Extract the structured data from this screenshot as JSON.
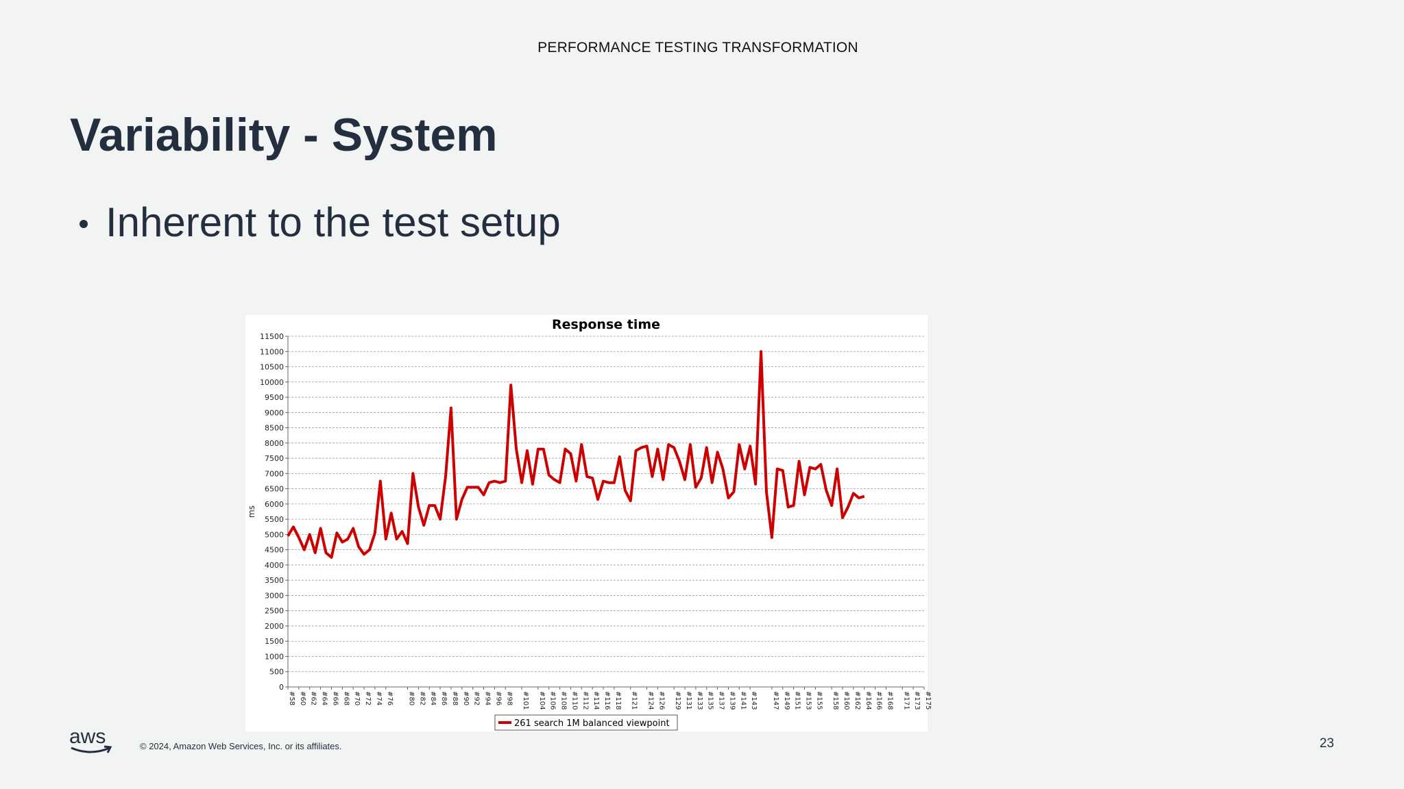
{
  "header": {
    "text": "PERFORMANCE TESTING TRANSFORMATION"
  },
  "slide": {
    "title": "Variability - System",
    "bullets": [
      "Inherent to the test setup"
    ]
  },
  "footer": {
    "logo": "aws",
    "copyright": "© 2024, Amazon Web Services, Inc. or its affiliates.",
    "page": "23"
  },
  "chart_data": {
    "type": "line",
    "title": "Response time",
    "xlabel": "",
    "ylabel": "ms",
    "ylim": [
      0,
      11500
    ],
    "ytick_step": 500,
    "grid": true,
    "legend_position": "bottom",
    "line_color": "#cc0000",
    "x_start": 58,
    "x_end": 175,
    "x_ticks": [
      "#58",
      "#60",
      "#62",
      "#64",
      "#66",
      "#68",
      "#70",
      "#72",
      "#74",
      "#76",
      "#80",
      "#82",
      "#84",
      "#86",
      "#88",
      "#90",
      "#92",
      "#94",
      "#96",
      "#98",
      "#101",
      "#104",
      "#106",
      "#108",
      "#110",
      "#112",
      "#114",
      "#116",
      "#118",
      "#121",
      "#124",
      "#126",
      "#129",
      "#131",
      "#133",
      "#135",
      "#137",
      "#139",
      "#141",
      "#143",
      "#147",
      "#149",
      "#151",
      "#153",
      "#155",
      "#158",
      "#160",
      "#162",
      "#164",
      "#166",
      "#168",
      "#171",
      "#173",
      "#175"
    ],
    "series": [
      {
        "name": "261 search 1M balanced viewpoint",
        "values": [
          4950,
          5250,
          4900,
          4500,
          5000,
          4400,
          5200,
          4400,
          4250,
          5050,
          4750,
          4850,
          5200,
          4600,
          4350,
          4500,
          5050,
          6750,
          4850,
          5700,
          4850,
          5100,
          4700,
          7000,
          5900,
          5300,
          5950,
          5950,
          5500,
          6900,
          9150,
          5500,
          6150,
          6550,
          6550,
          6550,
          6300,
          6700,
          6750,
          6700,
          6750,
          9900,
          7800,
          6700,
          7750,
          6650,
          7800,
          7800,
          6950,
          6800,
          6700,
          7800,
          7650,
          6750,
          7950,
          6900,
          6850,
          6150,
          6750,
          6700,
          6700,
          7550,
          6450,
          6100,
          7750,
          7850,
          7900,
          6900,
          7800,
          6800,
          7950,
          7850,
          7400,
          6800,
          7950,
          6550,
          6850,
          7850,
          6700,
          7700,
          7150,
          6200,
          6400,
          7950,
          7150,
          7900,
          6650,
          11000,
          6400,
          4900,
          7150,
          7100,
          5900,
          5950,
          7400,
          6300,
          7200,
          7150,
          7300,
          6450,
          5950,
          7150,
          5550,
          5900,
          6350,
          6200,
          6250
        ]
      }
    ]
  }
}
